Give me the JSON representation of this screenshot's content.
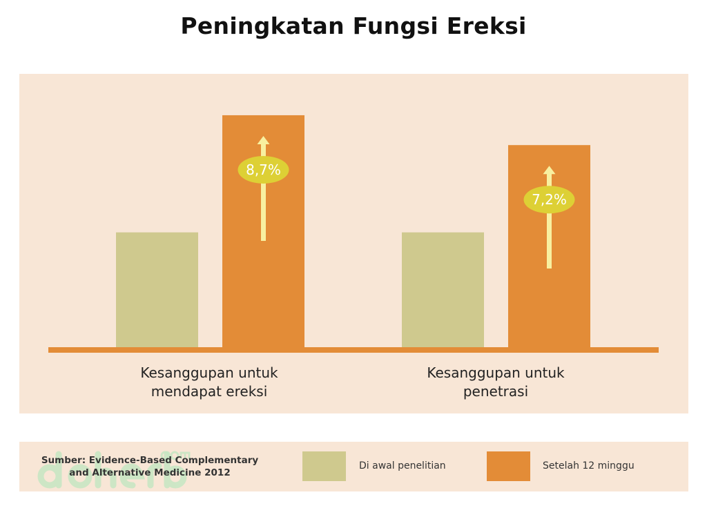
{
  "chart_data": {
    "type": "bar",
    "title": "Peningkatan Fungsi Ereksi",
    "categories": [
      "Kesanggupan untuk\nmendapat ereksi",
      "Kesanggupan untuk\npenetrasi"
    ],
    "series": [
      {
        "name": "Di awal penelitian",
        "values": [
          100,
          100
        ],
        "color": "#cfc98e"
      },
      {
        "name": "Setelah 12 minggu",
        "values": [
          202,
          176
        ],
        "color": "#e38c37"
      }
    ],
    "annotations": [
      "8,7%",
      "7,2%"
    ],
    "annotation_color": "#ddd035",
    "arrow_color": "#f8f0a0",
    "ylim": [
      0,
      220
    ],
    "grid": false,
    "legend": "bottom"
  },
  "source": "Sumber: Evidence-Based Complementary and Alternative Medicine 2012",
  "watermark": "doherba.com"
}
